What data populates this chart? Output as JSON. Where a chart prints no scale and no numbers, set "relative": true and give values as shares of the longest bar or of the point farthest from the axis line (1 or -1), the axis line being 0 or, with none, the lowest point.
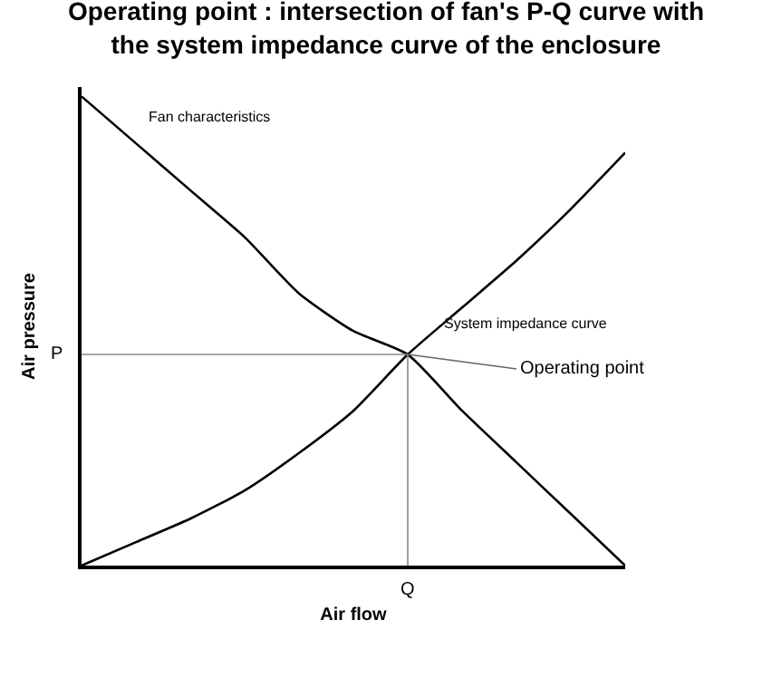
{
  "chart_data": {
    "type": "line",
    "title": "Operating point : intersection of fan's P-Q curve with\nthe system impedance curve of the enclosure",
    "xlabel": "Air flow",
    "ylabel": "Air pressure",
    "relative": true,
    "categories": [
      null,
      null,
      null,
      null,
      null,
      null,
      null,
      null,
      null,
      null,
      null
    ],
    "series": [
      {
        "name": "Fan characteristics",
        "color": "#000000",
        "values": [
          1.0,
          0.9,
          0.8,
          0.7,
          0.58,
          0.5,
          0.45,
          0.33,
          0.22,
          0.11,
          0
        ]
      },
      {
        "name": "System impedance curve",
        "color": "#000000",
        "values": [
          0,
          0.05,
          0.1,
          0.16,
          0.24,
          0.33,
          0.45,
          0.55,
          0.65,
          0.76,
          0.88
        ]
      }
    ],
    "annotations": [
      "Operating point",
      "P",
      "Q"
    ],
    "legend": false,
    "marker": "none",
    "line_style": "solid"
  }
}
